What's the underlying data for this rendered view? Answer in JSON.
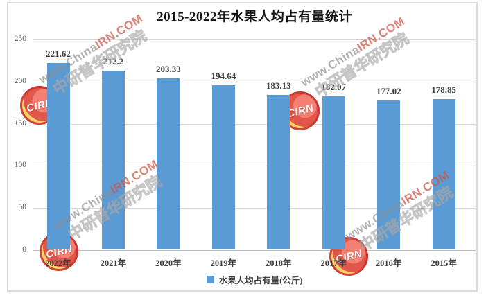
{
  "chart_data": {
    "type": "bar",
    "title": "2015-2022年水果人均占有量统计",
    "categories": [
      "2022年",
      "2021年",
      "2020年",
      "2019年",
      "2018年",
      "2017年",
      "2016年",
      "2015年"
    ],
    "values": [
      221.62,
      212.2,
      203.33,
      194.64,
      183.13,
      182.07,
      177.02,
      178.85
    ],
    "value_labels": [
      "221.62",
      "212.2",
      "203.33",
      "194.64",
      "183.13",
      "182.07",
      "177.02",
      "178.85"
    ],
    "series_name": "水果人均占有量(公斤)",
    "legend": [
      {
        "label": "水果人均占有量(公斤)",
        "color": "#5B9BD5"
      }
    ],
    "legend_position": "bottom",
    "xlabel": "",
    "ylabel": "",
    "ylim": [
      0,
      250
    ],
    "yticks": [
      0,
      50,
      100,
      150,
      200,
      250
    ],
    "grid": true,
    "bar_color": "#5B9BD5"
  },
  "watermark": {
    "url_prefix": "www.China",
    "url_suffix": "IRN.COM",
    "cn_text": "中研普华研究院",
    "logo_text": "CIRN"
  },
  "colors": {
    "bar": "#5B9BD5",
    "gridline": "#D9D9D9",
    "axis_line": "#BFBFBF",
    "frame_border": "#DBDBDB",
    "title_text": "#151515",
    "label_text": "#404040",
    "ytick_text": "#595959",
    "watermark_red": "#CC5544"
  }
}
